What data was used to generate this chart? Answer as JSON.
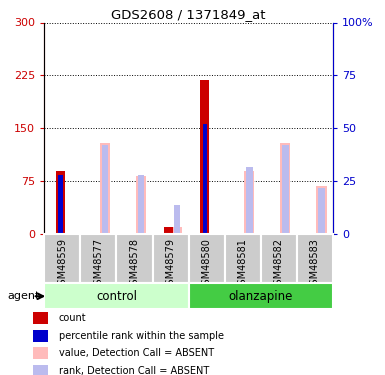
{
  "title": "GDS2608 / 1371849_at",
  "samples": [
    "GSM48559",
    "GSM48577",
    "GSM48578",
    "GSM48579",
    "GSM48580",
    "GSM48581",
    "GSM48582",
    "GSM48583"
  ],
  "group_labels": [
    "control",
    "olanzapine"
  ],
  "count_values": [
    90,
    0,
    0,
    10,
    218,
    0,
    0,
    0
  ],
  "rank_values": [
    28,
    0,
    0,
    0,
    52,
    0,
    0,
    0
  ],
  "value_absent": [
    0,
    130,
    82,
    10,
    0,
    90,
    130,
    68
  ],
  "rank_absent": [
    0,
    42,
    28,
    14,
    0,
    32,
    42,
    22
  ],
  "ylim_left": [
    0,
    300
  ],
  "ylim_right": [
    0,
    100
  ],
  "yticks_left": [
    0,
    75,
    150,
    225,
    300
  ],
  "ytick_labels_left": [
    "0",
    "75",
    "150",
    "225",
    "300"
  ],
  "yticks_right": [
    0,
    25,
    50,
    75,
    100
  ],
  "ytick_labels_right": [
    "0",
    "25",
    "50",
    "75",
    "100%"
  ],
  "color_count": "#cc0000",
  "color_rank": "#0000cc",
  "color_value_absent": "#ffbbbb",
  "color_rank_absent": "#bbbbee",
  "color_control_bg": "#ccffcc",
  "color_olanzapine_bg": "#44cc44",
  "color_sample_bg": "#cccccc",
  "agent_label": "agent",
  "legend_items": [
    {
      "label": "count",
      "color": "#cc0000"
    },
    {
      "label": "percentile rank within the sample",
      "color": "#0000cc"
    },
    {
      "label": "value, Detection Call = ABSENT",
      "color": "#ffbbbb"
    },
    {
      "label": "rank, Detection Call = ABSENT",
      "color": "#bbbbee"
    }
  ]
}
